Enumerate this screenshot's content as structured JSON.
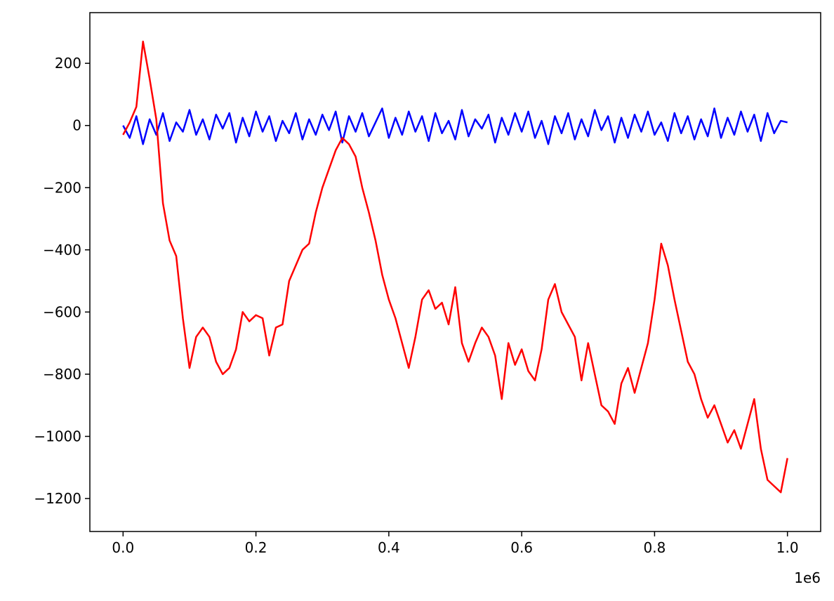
{
  "chart_data": {
    "type": "line",
    "x": [
      0,
      10000,
      20000,
      30000,
      40000,
      50000,
      60000,
      70000,
      80000,
      90000,
      100000,
      110000,
      120000,
      130000,
      140000,
      150000,
      160000,
      170000,
      180000,
      190000,
      200000,
      210000,
      220000,
      230000,
      240000,
      250000,
      260000,
      270000,
      280000,
      290000,
      300000,
      310000,
      320000,
      330000,
      340000,
      350000,
      360000,
      370000,
      380000,
      390000,
      400000,
      410000,
      420000,
      430000,
      440000,
      450000,
      460000,
      470000,
      480000,
      490000,
      500000,
      510000,
      520000,
      530000,
      540000,
      550000,
      560000,
      570000,
      580000,
      590000,
      600000,
      610000,
      620000,
      630000,
      640000,
      650000,
      660000,
      670000,
      680000,
      690000,
      700000,
      710000,
      720000,
      730000,
      740000,
      750000,
      760000,
      770000,
      780000,
      790000,
      800000,
      810000,
      820000,
      830000,
      840000,
      850000,
      860000,
      870000,
      880000,
      890000,
      900000,
      910000,
      920000,
      930000,
      940000,
      950000,
      960000,
      970000,
      980000,
      990000,
      1000000
    ],
    "series": [
      {
        "color": "#0000ff",
        "values": [
          0,
          -40,
          30,
          -60,
          20,
          -30,
          40,
          -50,
          10,
          -20,
          50,
          -30,
          20,
          -45,
          35,
          -10,
          40,
          -55,
          25,
          -35,
          45,
          -20,
          30,
          -50,
          15,
          -25,
          40,
          -45,
          20,
          -30,
          35,
          -15,
          45,
          -55,
          30,
          -20,
          40,
          -35,
          10,
          55,
          -40,
          25,
          -30,
          45,
          -20,
          30,
          -50,
          40,
          -25,
          15,
          -45,
          50,
          -35,
          20,
          -10,
          35,
          -55,
          25,
          -30,
          40,
          -20,
          45,
          -40,
          15,
          -60,
          30,
          -25,
          40,
          -45,
          20,
          -35,
          50,
          -15,
          30,
          -55,
          25,
          -40,
          35,
          -20,
          45,
          -30,
          10,
          -50,
          40,
          -25,
          30,
          -45,
          20,
          -35,
          55,
          -40,
          25,
          -30,
          45,
          -20,
          35,
          -50,
          40,
          -25,
          15,
          10
        ]
      },
      {
        "color": "#ff0000",
        "values": [
          -30,
          10,
          60,
          270,
          150,
          20,
          -250,
          -370,
          -420,
          -620,
          -780,
          -680,
          -650,
          -680,
          -760,
          -800,
          -780,
          -720,
          -600,
          -630,
          -610,
          -620,
          -740,
          -650,
          -640,
          -500,
          -450,
          -400,
          -380,
          -280,
          -200,
          -140,
          -80,
          -40,
          -60,
          -100,
          -200,
          -280,
          -370,
          -480,
          -560,
          -620,
          -700,
          -780,
          -680,
          -560,
          -530,
          -590,
          -570,
          -640,
          -520,
          -700,
          -760,
          -700,
          -650,
          -680,
          -740,
          -880,
          -700,
          -770,
          -720,
          -790,
          -820,
          -720,
          -560,
          -510,
          -600,
          -640,
          -680,
          -820,
          -700,
          -800,
          -900,
          -920,
          -960,
          -830,
          -780,
          -860,
          -780,
          -700,
          -560,
          -380,
          -450,
          -560,
          -660,
          -760,
          -800,
          -880,
          -940,
          -900,
          -960,
          -1020,
          -980,
          -1040,
          -960,
          -880,
          -1040,
          -1140,
          -1160,
          -1180,
          -1070
        ]
      }
    ],
    "xlim": [
      -50000,
      1050000
    ],
    "xticks": [
      {
        "value": 0,
        "label": "0.0"
      },
      {
        "value": 200000,
        "label": "0.2"
      },
      {
        "value": 400000,
        "label": "0.4"
      },
      {
        "value": 600000,
        "label": "0.6"
      },
      {
        "value": 800000,
        "label": "0.8"
      },
      {
        "value": 1000000,
        "label": "1.0"
      }
    ],
    "x_offset_label": "1e6",
    "ylim": [
      -1306,
      363
    ],
    "yticks": [
      {
        "value": -1200,
        "label": "−1200"
      },
      {
        "value": -1000,
        "label": "−1000"
      },
      {
        "value": -800,
        "label": "−800"
      },
      {
        "value": -600,
        "label": "−600"
      },
      {
        "value": -400,
        "label": "−400"
      },
      {
        "value": -200,
        "label": "−200"
      },
      0,
      200
    ],
    "grid": false
  }
}
